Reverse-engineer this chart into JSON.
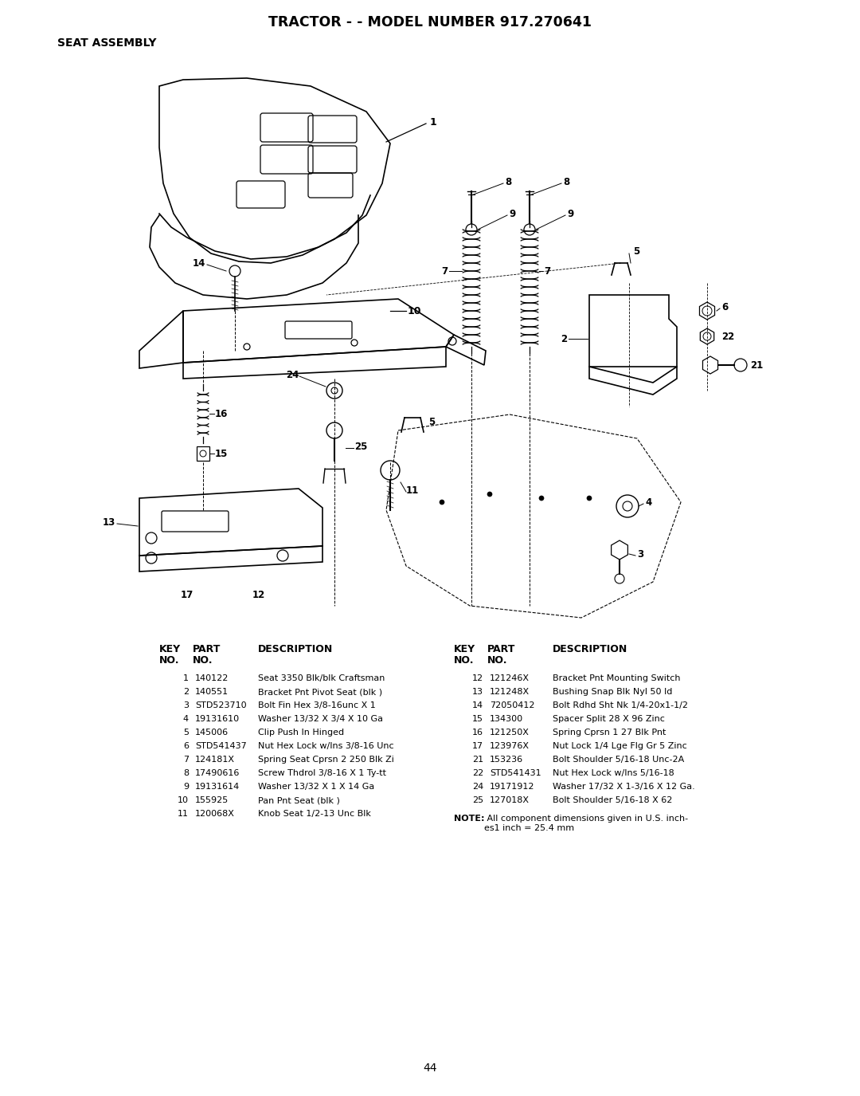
{
  "title_line1": "TRACTOR - - MODEL NUMBER 917.270641",
  "title_line2": "SEAT ASSEMBLY",
  "page_number": "44",
  "note_text_bold": "NOTE:",
  "note_text_normal": " All component dimensions given in U.S. inch-\nes1 inch = 25.4 mm",
  "columns_left": {
    "rows": [
      [
        "1",
        "140122",
        "Seat 3350 Blk/blk Craftsman"
      ],
      [
        "2",
        "140551",
        "Bracket Pnt Pivot Seat (blk )"
      ],
      [
        "3",
        "STD523710",
        "Bolt Fin Hex 3/8-16unc X 1"
      ],
      [
        "4",
        "19131610",
        "Washer 13/32 X 3/4 X 10 Ga"
      ],
      [
        "5",
        "145006",
        "Clip Push In Hinged"
      ],
      [
        "6",
        "STD541437",
        "Nut Hex Lock w/Ins 3/8-16 Unc"
      ],
      [
        "7",
        "124181X",
        "Spring Seat Cprsn 2 250 Blk Zi"
      ],
      [
        "8",
        "17490616",
        "Screw Thdrol 3/8-16 X 1 Ty-tt"
      ],
      [
        "9",
        "19131614",
        "Washer 13/32 X 1 X 14 Ga"
      ],
      [
        "10",
        "155925",
        "Pan Pnt Seat (blk )"
      ],
      [
        "11",
        "120068X",
        "Knob Seat 1/2-13 Unc Blk"
      ]
    ]
  },
  "columns_right": {
    "rows": [
      [
        "12",
        "121246X",
        "Bracket Pnt Mounting Switch"
      ],
      [
        "13",
        "121248X",
        "Bushing Snap Blk Nyl 50 Id"
      ],
      [
        "14",
        "72050412",
        "Bolt Rdhd Sht Nk 1/4-20x1-1/2"
      ],
      [
        "15",
        "134300",
        "Spacer Split 28 X 96 Zinc"
      ],
      [
        "16",
        "121250X",
        "Spring Cprsn 1 27 Blk Pnt"
      ],
      [
        "17",
        "123976X",
        "Nut Lock 1/4 Lge Flg Gr 5 Zinc"
      ],
      [
        "21",
        "153236",
        "Bolt Shoulder 5/16-18 Unc-2A"
      ],
      [
        "22",
        "STD541431",
        "Nut Hex Lock w/Ins 5/16-18"
      ],
      [
        "24",
        "19171912",
        "Washer 17/32 X 1-3/16 X 12 Ga."
      ],
      [
        "25",
        "127018X",
        "Bolt Shoulder 5/16-18 X 62"
      ]
    ]
  },
  "background_color": "#ffffff",
  "text_color": "#000000"
}
